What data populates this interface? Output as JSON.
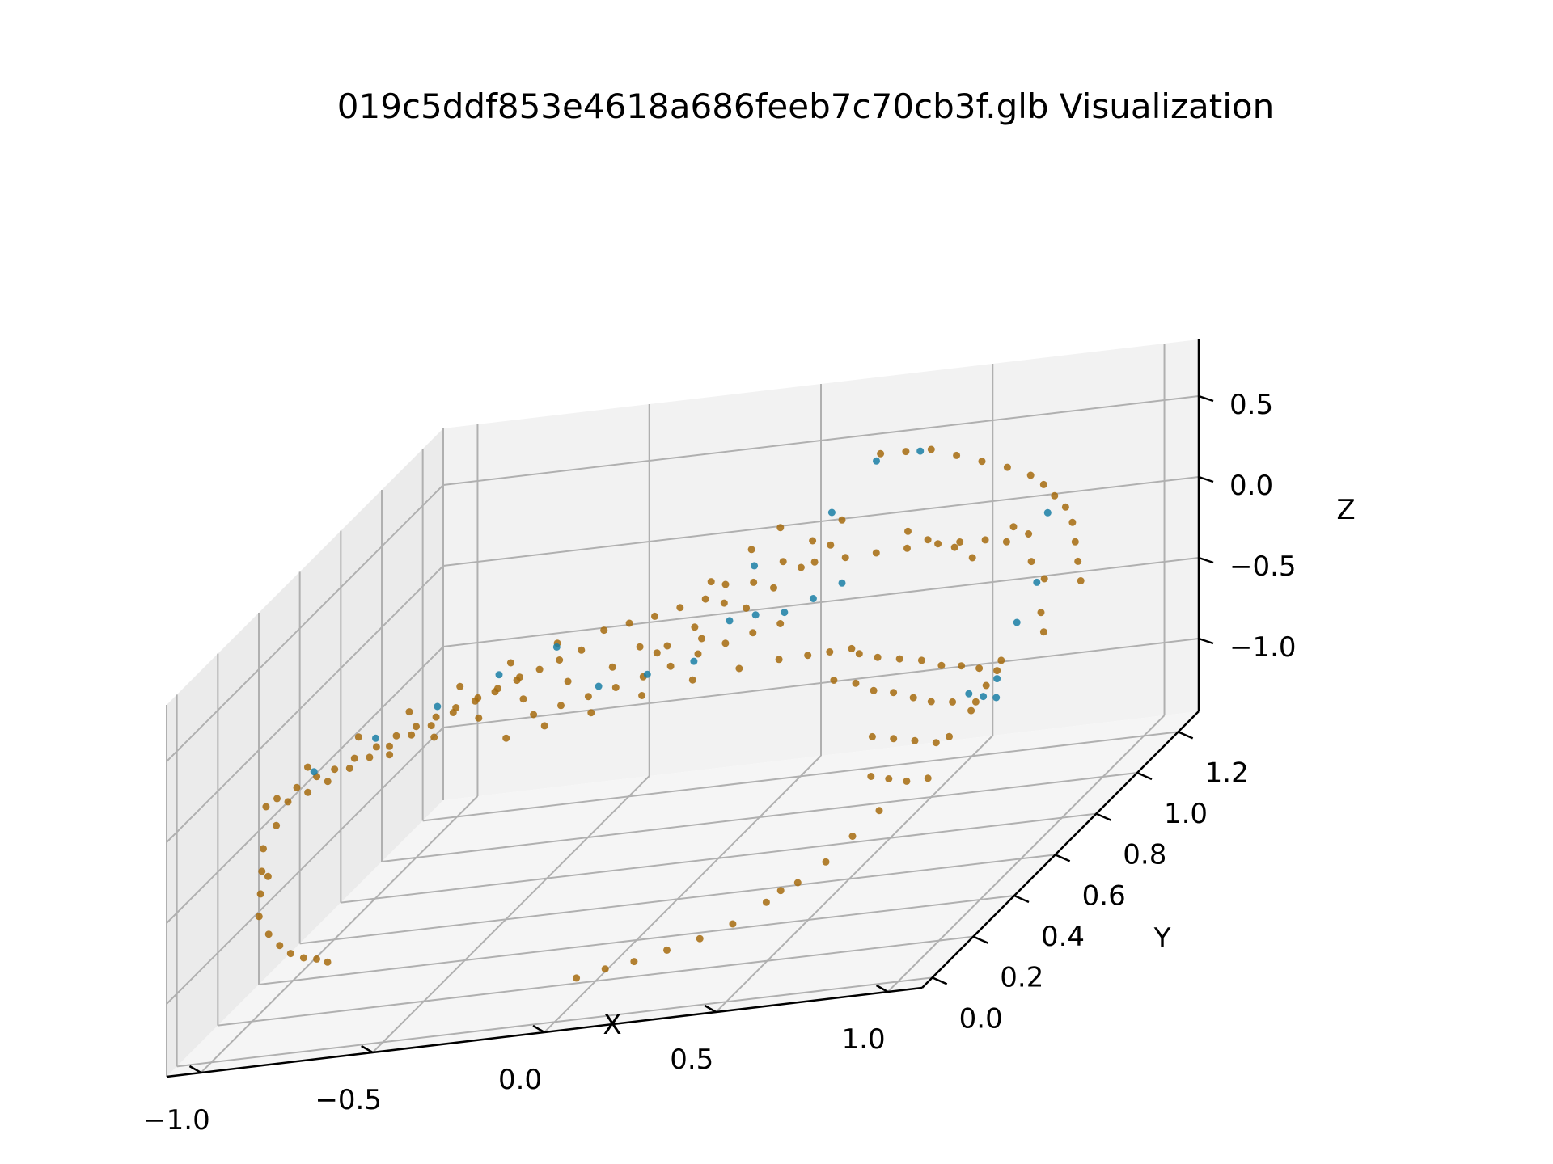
{
  "chart_data": {
    "type": "scatter",
    "title": "019c5ddf853e4618a686feeb7c70cb3f.glb Visualization",
    "xlabel": "X",
    "ylabel": "Y",
    "zlabel": "Z",
    "xlim": [
      -1.1,
      1.1
    ],
    "ylim": [
      -0.05,
      1.3
    ],
    "zlim": [
      -1.45,
      0.85
    ],
    "x_ticks": [
      -1.0,
      -0.5,
      0.0,
      0.5,
      1.0
    ],
    "x_tick_labels": [
      "−1.0",
      "−0.5",
      "0.0",
      "0.5",
      "1.0"
    ],
    "y_ticks": [
      0.0,
      0.2,
      0.4,
      0.6,
      0.8,
      1.0,
      1.2
    ],
    "y_tick_labels": [
      "0.0",
      "0.2",
      "0.4",
      "0.6",
      "0.8",
      "1.0",
      "1.2"
    ],
    "z_ticks": [
      -1.0,
      -0.5,
      0.0,
      0.5
    ],
    "z_tick_labels": [
      "−1.0",
      "−0.5",
      "0.0",
      "0.5"
    ],
    "grid": true,
    "colors": {
      "series_main": "#a66b0e",
      "series_highlight": "#1a7fa6",
      "pane_back": "#f2f2f2",
      "pane_side": "#ebebeb",
      "pane_floor": "#f5f5f5"
    },
    "series": [
      {
        "color": "#a66b0e",
        "points": [
          [
            -0.88,
            0.12,
            0.0
          ],
          [
            -0.84,
            0.15,
            0.02
          ],
          [
            -0.8,
            0.18,
            0.04
          ],
          [
            -0.76,
            0.2,
            0.05
          ],
          [
            -0.72,
            0.23,
            0.07
          ],
          [
            -0.68,
            0.27,
            0.08
          ],
          [
            -0.64,
            0.3,
            0.1
          ],
          [
            -0.6,
            0.33,
            0.11
          ],
          [
            -0.56,
            0.36,
            0.12
          ],
          [
            -0.52,
            0.39,
            0.13
          ],
          [
            -0.48,
            0.43,
            0.13
          ],
          [
            -0.44,
            0.46,
            0.14
          ],
          [
            -0.4,
            0.5,
            0.15
          ],
          [
            -0.36,
            0.53,
            0.15
          ],
          [
            -0.32,
            0.56,
            0.16
          ],
          [
            -0.28,
            0.6,
            0.16
          ],
          [
            -0.86,
            0.14,
            -0.05
          ],
          [
            -0.82,
            0.17,
            -0.04
          ],
          [
            -0.78,
            0.2,
            -0.02
          ],
          [
            -0.74,
            0.24,
            0.0
          ],
          [
            -0.7,
            0.27,
            0.02
          ],
          [
            -0.66,
            0.3,
            0.04
          ],
          [
            -0.62,
            0.34,
            0.05
          ],
          [
            -0.58,
            0.37,
            0.06
          ],
          [
            -0.54,
            0.41,
            0.08
          ],
          [
            -0.5,
            0.45,
            0.09
          ],
          [
            -0.46,
            0.48,
            0.1
          ],
          [
            -0.42,
            0.52,
            0.11
          ],
          [
            -0.9,
            0.1,
            -0.02
          ],
          [
            -0.85,
            0.22,
            0.06
          ],
          [
            -0.75,
            0.3,
            0.12
          ],
          [
            -0.65,
            0.38,
            0.15
          ],
          [
            -0.55,
            0.46,
            0.18
          ],
          [
            -0.45,
            0.54,
            0.2
          ],
          [
            -0.35,
            0.6,
            0.22
          ],
          [
            -0.25,
            0.66,
            0.2
          ],
          [
            -0.2,
            0.7,
            0.18
          ],
          [
            -0.15,
            0.74,
            0.16
          ],
          [
            -0.1,
            0.78,
            0.15
          ],
          [
            -0.05,
            0.82,
            0.14
          ],
          [
            -0.3,
            0.4,
            0.02
          ],
          [
            -0.25,
            0.45,
            0.0
          ],
          [
            -0.2,
            0.5,
            -0.02
          ],
          [
            -0.15,
            0.55,
            -0.04
          ],
          [
            -0.1,
            0.6,
            -0.05
          ],
          [
            -0.05,
            0.65,
            -0.06
          ],
          [
            0.0,
            0.7,
            -0.06
          ],
          [
            0.05,
            0.75,
            -0.07
          ],
          [
            0.1,
            0.8,
            -0.08
          ],
          [
            0.15,
            0.85,
            -0.1
          ],
          [
            -0.35,
            0.35,
            -0.05
          ],
          [
            -0.28,
            0.42,
            -0.08
          ],
          [
            -0.18,
            0.48,
            -0.1
          ],
          [
            -0.08,
            0.56,
            -0.12
          ],
          [
            0.02,
            0.64,
            -0.15
          ],
          [
            0.12,
            0.7,
            -0.18
          ],
          [
            0.2,
            0.76,
            -0.22
          ],
          [
            0.26,
            0.8,
            -0.26
          ],
          [
            0.3,
            0.84,
            -0.3
          ],
          [
            0.34,
            0.88,
            -0.34
          ],
          [
            0.05,
            0.6,
            0.22
          ],
          [
            0.1,
            0.66,
            0.28
          ],
          [
            0.15,
            0.72,
            0.32
          ],
          [
            0.2,
            0.78,
            0.36
          ],
          [
            0.25,
            0.84,
            0.4
          ],
          [
            0.3,
            0.9,
            0.44
          ],
          [
            0.0,
            0.55,
            0.18
          ],
          [
            -0.05,
            0.5,
            0.25
          ],
          [
            0.05,
            0.68,
            0.4
          ],
          [
            0.12,
            0.76,
            0.48
          ],
          [
            0.18,
            0.8,
            0.55
          ],
          [
            0.08,
            0.7,
            0.35
          ],
          [
            0.22,
            0.9,
            0.2
          ],
          [
            0.28,
            0.95,
            0.15
          ],
          [
            0.34,
            1.0,
            0.1
          ],
          [
            0.4,
            1.05,
            0.05
          ],
          [
            0.46,
            1.1,
            0.0
          ],
          [
            0.5,
            1.14,
            -0.05
          ],
          [
            0.55,
            1.18,
            -0.1
          ],
          [
            0.6,
            1.2,
            -0.15
          ],
          [
            0.35,
            0.9,
            -0.4
          ],
          [
            0.38,
            0.94,
            -0.48
          ],
          [
            0.42,
            0.98,
            -0.55
          ],
          [
            0.46,
            1.02,
            -0.62
          ],
          [
            0.5,
            1.05,
            -0.7
          ],
          [
            0.54,
            1.08,
            -0.75
          ],
          [
            0.58,
            1.1,
            -0.8
          ],
          [
            0.62,
            1.12,
            -0.85
          ],
          [
            0.3,
            0.86,
            -0.5
          ],
          [
            0.34,
            0.9,
            -0.58
          ],
          [
            0.38,
            0.92,
            -0.66
          ],
          [
            0.42,
            0.95,
            -0.72
          ],
          [
            0.46,
            0.98,
            -0.8
          ],
          [
            0.5,
            1.0,
            -0.86
          ],
          [
            0.55,
            1.02,
            -0.9
          ],
          [
            0.6,
            1.05,
            -0.95
          ],
          [
            0.4,
            0.88,
            -0.9
          ],
          [
            0.45,
            0.9,
            -0.95
          ],
          [
            0.5,
            0.92,
            -1.0
          ],
          [
            0.55,
            0.94,
            -1.05
          ],
          [
            0.42,
            0.84,
            -1.1
          ],
          [
            0.46,
            0.86,
            -1.15
          ],
          [
            0.5,
            0.88,
            -1.2
          ],
          [
            0.55,
            0.9,
            -1.22
          ],
          [
            0.6,
            0.92,
            -1.0
          ],
          [
            0.64,
            0.96,
            -0.9
          ],
          [
            0.66,
            1.0,
            -0.8
          ],
          [
            0.68,
            1.04,
            -0.7
          ],
          [
            0.45,
            0.7,
            -1.3
          ],
          [
            0.42,
            0.62,
            -1.35
          ],
          [
            0.38,
            0.55,
            -1.38
          ],
          [
            0.33,
            0.48,
            -1.4
          ],
          [
            0.28,
            0.4,
            -1.42
          ],
          [
            0.22,
            0.34,
            -1.42
          ],
          [
            0.16,
            0.28,
            -1.4
          ],
          [
            0.1,
            0.22,
            -1.38
          ],
          [
            0.04,
            0.18,
            -1.36
          ],
          [
            -0.02,
            0.14,
            -1.35
          ],
          [
            0.48,
            0.78,
            -1.25
          ],
          [
            0.36,
            0.5,
            -1.36
          ],
          [
            -0.92,
            0.12,
            -0.3
          ],
          [
            -0.93,
            0.13,
            -0.45
          ],
          [
            -0.94,
            0.14,
            -0.6
          ],
          [
            -0.95,
            0.15,
            -0.75
          ],
          [
            -0.94,
            0.18,
            -0.9
          ],
          [
            -0.92,
            0.2,
            -1.0
          ],
          [
            -0.9,
            0.22,
            -1.08
          ],
          [
            -0.88,
            0.25,
            -1.15
          ],
          [
            -0.86,
            0.28,
            -1.2
          ],
          [
            -0.84,
            0.3,
            -1.25
          ],
          [
            -0.9,
            0.15,
            -0.2
          ],
          [
            -0.93,
            0.16,
            -0.52
          ],
          [
            0.7,
            1.15,
            0.3
          ],
          [
            0.72,
            1.18,
            0.2
          ],
          [
            0.74,
            1.2,
            0.1
          ],
          [
            0.76,
            1.22,
            0.0
          ],
          [
            0.78,
            1.22,
            -0.1
          ],
          [
            0.8,
            1.2,
            -0.2
          ],
          [
            0.82,
            1.18,
            -0.3
          ],
          [
            0.84,
            1.16,
            -0.4
          ],
          [
            0.65,
            1.12,
            0.4
          ],
          [
            0.6,
            1.08,
            0.5
          ],
          [
            0.55,
            1.04,
            0.6
          ],
          [
            0.5,
            1.0,
            0.7
          ],
          [
            0.45,
            0.96,
            0.75
          ],
          [
            0.4,
            0.92,
            0.8
          ],
          [
            0.68,
            1.1,
            0.05
          ],
          [
            0.7,
            1.14,
            -0.05
          ],
          [
            0.72,
            1.12,
            -0.2
          ],
          [
            0.74,
            1.15,
            -0.35
          ],
          [
            0.76,
            1.1,
            -0.5
          ],
          [
            0.78,
            1.08,
            -0.6
          ],
          [
            0.62,
            1.0,
            0.0
          ],
          [
            0.58,
            0.98,
            0.1
          ],
          [
            0.52,
            0.95,
            0.2
          ],
          [
            0.48,
            0.92,
            0.3
          ],
          [
            0.2,
            0.6,
            0.3
          ],
          [
            0.25,
            0.65,
            0.35
          ],
          [
            0.3,
            0.7,
            0.4
          ],
          [
            0.35,
            0.76,
            0.45
          ],
          [
            -0.6,
            0.2,
            0.1
          ],
          [
            -0.5,
            0.25,
            0.12
          ],
          [
            -0.4,
            0.3,
            0.15
          ],
          [
            -0.3,
            0.35,
            0.18
          ],
          [
            -0.2,
            0.4,
            0.2
          ],
          [
            -0.1,
            0.45,
            0.2
          ],
          [
            0.0,
            0.5,
            0.2
          ],
          [
            0.1,
            0.55,
            0.2
          ]
        ]
      },
      {
        "color": "#1a7fa6",
        "points": [
          [
            -0.82,
            0.2,
            0.05
          ],
          [
            -0.7,
            0.3,
            0.1
          ],
          [
            -0.58,
            0.4,
            0.14
          ],
          [
            -0.46,
            0.5,
            0.18
          ],
          [
            -0.2,
            0.55,
            -0.02
          ],
          [
            -0.1,
            0.62,
            -0.06
          ],
          [
            0.0,
            0.68,
            -0.08
          ],
          [
            0.08,
            0.72,
            0.1
          ],
          [
            0.12,
            0.78,
            0.05
          ],
          [
            0.18,
            0.82,
            0.0
          ],
          [
            0.24,
            0.86,
            0.02
          ],
          [
            0.3,
            0.9,
            0.05
          ],
          [
            0.55,
            1.1,
            -0.95
          ],
          [
            0.58,
            1.12,
            -1.0
          ],
          [
            0.6,
            1.15,
            -1.05
          ],
          [
            0.62,
            1.12,
            -0.9
          ],
          [
            0.66,
            1.15,
            -0.6
          ],
          [
            0.7,
            1.18,
            -0.4
          ],
          [
            0.72,
            1.2,
            0.0
          ],
          [
            0.4,
            0.9,
            0.78
          ],
          [
            0.48,
            0.98,
            0.72
          ],
          [
            0.3,
            0.85,
            0.55
          ],
          [
            0.14,
            0.74,
            0.4
          ],
          [
            -0.34,
            0.58,
            0.22
          ]
        ]
      }
    ]
  }
}
